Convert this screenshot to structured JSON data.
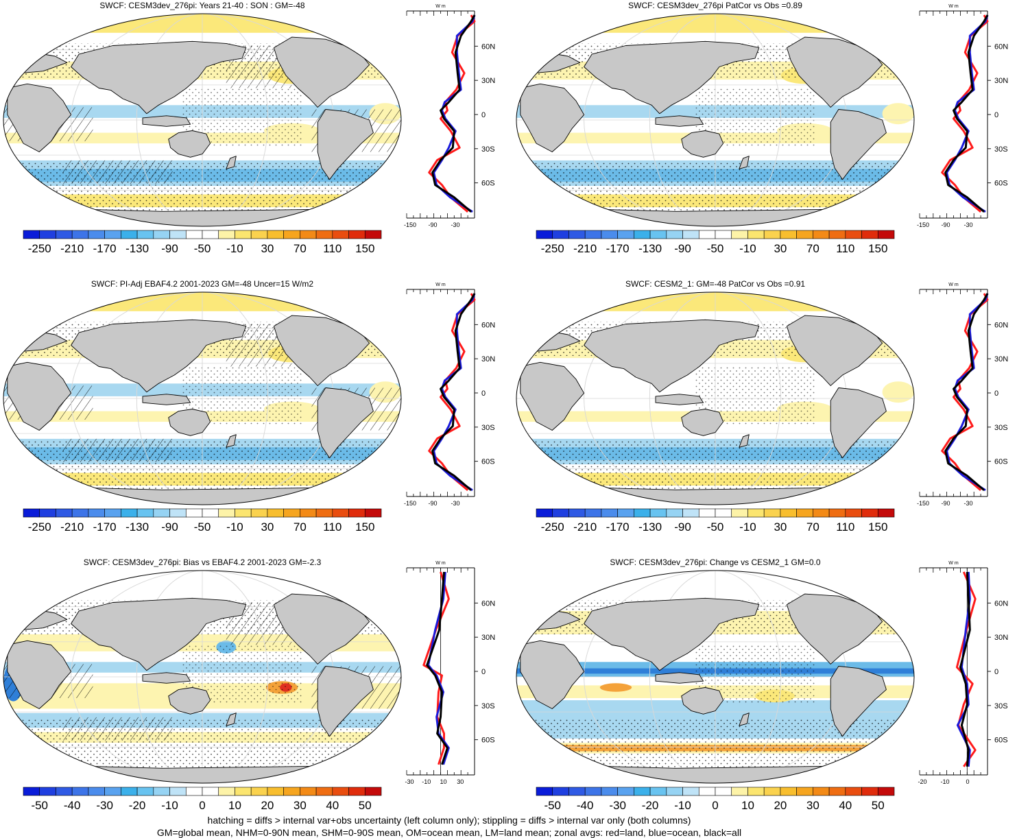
{
  "colors": {
    "land": "#c8c8c8",
    "ocean_yellow": "#fbe87a",
    "ocean_lightyellow": "#fdf4b0",
    "ocean_lightblue": "#a8d8f0",
    "ocean_blue": "#6bbbe8",
    "ocean_dark": "#2f7fd8",
    "orange": "#f4a23a",
    "red": "#e03020",
    "zonal_red": "#ff1a1a",
    "zonal_blue": "#1a1adb",
    "zonal_black": "#000000"
  },
  "abs_palette": [
    "#0a1cd9",
    "#1f3fe0",
    "#2f5ae4",
    "#3d74e8",
    "#4b8cec",
    "#59a2ef",
    "#3bb0ea",
    "#68c3f0",
    "#96d3f3",
    "#bfe3f7",
    "#ffffff",
    "#ffffff",
    "#fdf3a8",
    "#fbe56f",
    "#fad24e",
    "#f8be2e",
    "#f6a51f",
    "#f38a16",
    "#ef6d12",
    "#e94d0f",
    "#e02c0c",
    "#c40a0a"
  ],
  "diff_palette": [
    "#0a1cd9",
    "#1f3fe0",
    "#2f5ae4",
    "#3d74e8",
    "#4b8cec",
    "#59a2ef",
    "#3bb0ea",
    "#68c3f0",
    "#96d3f3",
    "#bfe3f7",
    "#ffffff",
    "#ffffff",
    "#fdf3a8",
    "#fbe56f",
    "#fad24e",
    "#f8be2e",
    "#f6a51f",
    "#f38a16",
    "#ef6d12",
    "#e94d0f",
    "#e02c0c",
    "#c40a0a"
  ],
  "abs_labels": [
    "-250",
    "-210",
    "-170",
    "-130",
    "-90",
    "-50",
    "-10",
    "30",
    "70",
    "110",
    "150"
  ],
  "diff_labels": [
    "-50",
    "-40",
    "-30",
    "-20",
    "-10",
    "0",
    "10",
    "20",
    "30",
    "40",
    "50"
  ],
  "lat_labels": [
    "60N",
    "30N",
    "0",
    "30S",
    "60S"
  ],
  "zonal_units": "W m",
  "panels": [
    {
      "id": "p1",
      "title": "SWCF: CESM3dev_276pi: Years 21-40 : SON : GM=-48",
      "kind": "abs",
      "hatch": true,
      "zonal_ticks": [
        "-150",
        "-90",
        "-30"
      ]
    },
    {
      "id": "p2",
      "title": "SWCF: CESM3dev_276pi PatCor vs Obs =0.89",
      "kind": "abs",
      "hatch": false,
      "zonal_ticks": [
        "-150",
        "-90",
        "-30"
      ]
    },
    {
      "id": "p3",
      "title": "SWCF: PI-Adj EBAF4.2 2001-2023 GM=-48 Uncer=15 W/m2",
      "kind": "abs",
      "hatch": true,
      "zonal_ticks": [
        "-150",
        "-90",
        "-30"
      ]
    },
    {
      "id": "p4",
      "title": "SWCF: CESM2_1: GM=-48 PatCor vs Obs =0.91",
      "kind": "abs",
      "hatch": false,
      "zonal_ticks": [
        "-150",
        "-90",
        "-30"
      ]
    },
    {
      "id": "p5",
      "title": "SWCF: CESM3dev_276pi: Bias vs EBAF4.2 2001-2023  GM=-2.3",
      "kind": "diff",
      "hatch": true,
      "zonal_ticks": [
        "-30",
        "-10",
        "10",
        "30"
      ]
    },
    {
      "id": "p6",
      "title": "SWCF: CESM3dev_276pi: Change vs CESM2_1 GM=0.0",
      "kind": "diff",
      "hatch": false,
      "zonal_ticks": [
        "-20",
        "-10",
        "0"
      ]
    }
  ],
  "footer": {
    "line1": "hatching = diffs > internal var+obs uncertainty (left column only); stippling = diffs > internal var only (both columns)",
    "line2": "GM=global mean, NHM=0-90N mean, SHM=0-90S mean, OM=ocean mean, LM=land mean; zonal avgs: red=land, blue=ocean, black=all"
  }
}
